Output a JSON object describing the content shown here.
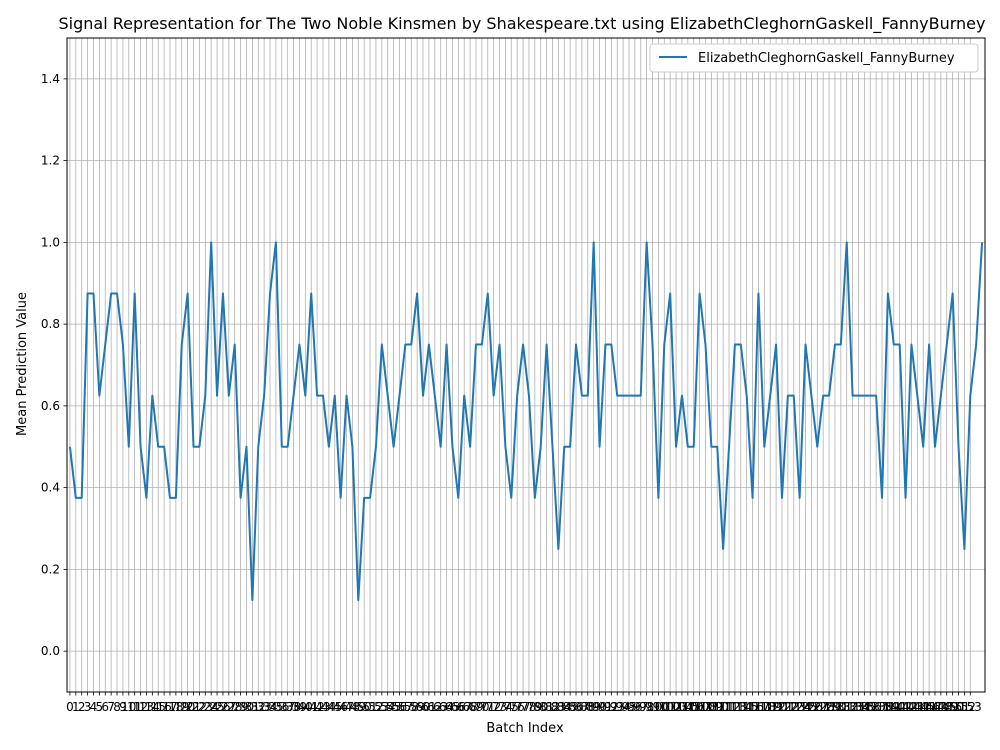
{
  "chart_data": {
    "type": "line",
    "title": "Signal Representation for The Two Noble Kinsmen by Shakespeare.txt using ElizabethCleghornGaskell_FannyBurney",
    "xlabel": "Batch Index",
    "ylabel": "Mean Prediction Value",
    "xlim": [
      -0.5,
      155.5
    ],
    "ylim": [
      -0.1,
      1.5
    ],
    "yticks": [
      0.0,
      0.2,
      0.4,
      0.6,
      0.8,
      1.0,
      1.2,
      1.4
    ],
    "grid": true,
    "legend_position": "top-right",
    "colors": {
      "series": "#1f77b4",
      "grid": "#b0b0b0",
      "axes": "#000000"
    },
    "series": [
      {
        "name": "ElizabethCleghornGaskell_FannyBurney",
        "x": [
          0,
          1,
          2,
          3,
          4,
          5,
          6,
          7,
          8,
          9,
          10,
          11,
          12,
          13,
          14,
          15,
          16,
          17,
          18,
          19,
          20,
          21,
          22,
          23,
          24,
          25,
          26,
          27,
          28,
          29,
          30,
          31,
          32,
          33,
          34,
          35,
          36,
          37,
          38,
          39,
          40,
          41,
          42,
          43,
          44,
          45,
          46,
          47,
          48,
          49,
          50,
          51,
          52,
          53,
          54,
          55,
          56,
          57,
          58,
          59,
          60,
          61,
          62,
          63,
          64,
          65,
          66,
          67,
          68,
          69,
          70,
          71,
          72,
          73,
          74,
          75,
          76,
          77,
          78,
          79,
          80,
          81,
          82,
          83,
          84,
          85,
          86,
          87,
          88,
          89,
          90,
          91,
          92,
          93,
          94,
          95,
          96,
          97,
          98,
          99,
          100,
          101,
          102,
          103,
          104,
          105,
          106,
          107,
          108,
          109,
          110,
          111,
          112,
          113,
          114,
          115,
          116,
          117,
          118,
          119,
          120,
          121,
          122,
          123,
          124,
          125,
          126,
          127,
          128,
          129,
          130,
          131,
          132,
          133,
          134,
          135,
          136,
          137,
          138,
          139,
          140,
          141,
          142,
          143,
          144,
          145,
          146,
          147,
          148,
          149,
          150,
          151,
          152,
          153,
          154,
          155
        ],
        "values": [
          0.5,
          0.375,
          0.375,
          0.875,
          0.875,
          0.625,
          0.75,
          0.875,
          0.875,
          0.75,
          0.5,
          0.875,
          0.5,
          0.375,
          0.625,
          0.5,
          0.5,
          0.375,
          0.375,
          0.75,
          0.875,
          0.5,
          0.5,
          0.625,
          1.0,
          0.625,
          0.875,
          0.625,
          0.75,
          0.375,
          0.5,
          0.125,
          0.5,
          0.625,
          0.875,
          1.0,
          0.5,
          0.5,
          0.625,
          0.75,
          0.625,
          0.875,
          0.625,
          0.625,
          0.5,
          0.625,
          0.375,
          0.625,
          0.5,
          0.125,
          0.375,
          0.375,
          0.5,
          0.75,
          0.625,
          0.5,
          0.625,
          0.75,
          0.75,
          0.875,
          0.625,
          0.75,
          0.625,
          0.5,
          0.75,
          0.5,
          0.375,
          0.625,
          0.5,
          0.75,
          0.75,
          0.875,
          0.625,
          0.75,
          0.5,
          0.375,
          0.625,
          0.75,
          0.625,
          0.375,
          0.5,
          0.75,
          0.5,
          0.25,
          0.5,
          0.5,
          0.75,
          0.625,
          0.625,
          1.0,
          0.5,
          0.75,
          0.75,
          0.625,
          0.625,
          0.625,
          0.625,
          0.625,
          1.0,
          0.75,
          0.375,
          0.75,
          0.875,
          0.5,
          0.625,
          0.5,
          0.5,
          0.875,
          0.75,
          0.5,
          0.5,
          0.25,
          0.5,
          0.75,
          0.75,
          0.625,
          0.375,
          0.875,
          0.5,
          0.625,
          0.75,
          0.375,
          0.625,
          0.625,
          0.375,
          0.75,
          0.625,
          0.5,
          0.625,
          0.625,
          0.75,
          0.75,
          1.0,
          0.625,
          0.625,
          0.625,
          0.625,
          0.625,
          0.375,
          0.875,
          0.75,
          0.75,
          0.375,
          0.75,
          0.625,
          0.5,
          0.75,
          0.5,
          0.625,
          0.75,
          0.875,
          0.5,
          0.25,
          0.625,
          0.75,
          1.0
        ]
      }
    ],
    "xtick_labels": [
      "0",
      "1",
      "2",
      "3",
      "4",
      "5",
      "6",
      "7",
      "8",
      "9",
      "10",
      "11",
      "12",
      "13",
      "14",
      "15",
      "16",
      "17",
      "18",
      "19",
      "20",
      "21",
      "22",
      "23",
      "24",
      "25",
      "26",
      "27",
      "28",
      "29",
      "30",
      "31",
      "32",
      "33",
      "34",
      "35",
      "36",
      "37",
      "38",
      "39",
      "40",
      "41",
      "42",
      "43",
      "44",
      "45",
      "46",
      "47",
      "48",
      "49",
      "50",
      "51",
      "52",
      "53",
      "54",
      "55",
      "56",
      "57",
      "58",
      "59",
      "60",
      "61",
      "62",
      "63",
      "64",
      "65",
      "66",
      "67",
      "68",
      "69",
      "70",
      "71",
      "72",
      "73",
      "74",
      "75",
      "76",
      "77",
      "78",
      "79",
      "80",
      "81",
      "82",
      "83",
      "84",
      "85",
      "86",
      "87",
      "88",
      "89",
      "90",
      "91",
      "92",
      "93",
      "94",
      "95",
      "96",
      "97",
      "98",
      "99",
      "100",
      "101",
      "102",
      "103",
      "104",
      "105",
      "106",
      "107",
      "108",
      "109",
      "110",
      "111",
      "112",
      "113",
      "114",
      "115",
      "116",
      "117",
      "118",
      "119",
      "120",
      "121",
      "122",
      "123",
      "124",
      "125",
      "126",
      "127",
      "128",
      "129",
      "130",
      "131",
      "132",
      "133",
      "134",
      "135",
      "136",
      "137",
      "138",
      "139",
      "140",
      "141",
      "142",
      "143",
      "144",
      "145",
      "146",
      "147",
      "148",
      "149",
      "150",
      "151",
      "152",
      "153"
    ]
  }
}
